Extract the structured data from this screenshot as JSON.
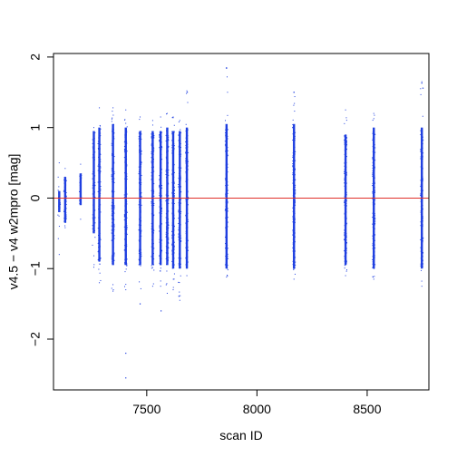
{
  "chart_data": {
    "type": "scatter",
    "title": "",
    "xlabel": "scan ID",
    "ylabel": "v4.5 − v4 w2mpro [mag]",
    "xlim": [
      7077,
      8780
    ],
    "ylim": [
      -2.72,
      2.05
    ],
    "x_ticks": [
      7500,
      8000,
      8500
    ],
    "x_tick_labels": [
      "7500",
      "8000",
      "8500"
    ],
    "y_ticks": [
      -2,
      -1,
      0,
      1,
      2
    ],
    "y_tick_labels": [
      "−2",
      "−1",
      "0",
      "1",
      "2"
    ],
    "reference_line": {
      "y": 0,
      "color": "#e0302a"
    },
    "point_color": "#1f3fe0",
    "grid": false,
    "columns": [
      {
        "x": 7103,
        "y_min": -0.8,
        "y_max": 0.5,
        "dense_min": -0.2,
        "dense_max": 0.1,
        "n": 22
      },
      {
        "x": 7130,
        "y_min": -0.42,
        "y_max": 0.42,
        "dense_min": -0.35,
        "dense_max": 0.3,
        "n": 60
      },
      {
        "x": 7200,
        "y_min": -0.3,
        "y_max": 0.48,
        "dense_min": -0.1,
        "dense_max": 0.35,
        "n": 22
      },
      {
        "x": 7260,
        "y_min": -0.98,
        "y_max": 1.0,
        "dense_min": -0.5,
        "dense_max": 0.95,
        "n": 70
      },
      {
        "x": 7285,
        "y_min": -1.2,
        "y_max": 1.28,
        "dense_min": -0.9,
        "dense_max": 1.0,
        "n": 110
      },
      {
        "x": 7347,
        "y_min": -1.32,
        "y_max": 1.28,
        "dense_min": -0.95,
        "dense_max": 1.05,
        "n": 160
      },
      {
        "x": 7405,
        "y_min": -1.3,
        "y_max": 1.25,
        "dense_min": -0.95,
        "dense_max": 1.0,
        "n": 160
      },
      {
        "x": 7470,
        "y_min": -1.5,
        "y_max": 1.15,
        "dense_min": -0.95,
        "dense_max": 0.95,
        "n": 130
      },
      {
        "x": 7527,
        "y_min": -1.25,
        "y_max": 1.1,
        "dense_min": -0.95,
        "dense_max": 0.95,
        "n": 130
      },
      {
        "x": 7563,
        "y_min": -1.25,
        "y_max": 1.15,
        "dense_min": -0.95,
        "dense_max": 0.95,
        "n": 130
      },
      {
        "x": 7593,
        "y_min": -1.35,
        "y_max": 1.2,
        "dense_min": -0.95,
        "dense_max": 1.0,
        "n": 130
      },
      {
        "x": 7620,
        "y_min": -1.3,
        "y_max": 1.15,
        "dense_min": -1.0,
        "dense_max": 0.95,
        "n": 130
      },
      {
        "x": 7650,
        "y_min": -1.45,
        "y_max": 1.1,
        "dense_min": -1.0,
        "dense_max": 0.95,
        "n": 130
      },
      {
        "x": 7682,
        "y_min": -1.1,
        "y_max": 1.52,
        "dense_min": -1.0,
        "dense_max": 1.0,
        "n": 130
      },
      {
        "x": 7862,
        "y_min": -1.12,
        "y_max": 1.85,
        "dense_min": -1.0,
        "dense_max": 1.05,
        "n": 160
      },
      {
        "x": 8168,
        "y_min": -1.15,
        "y_max": 1.5,
        "dense_min": -1.0,
        "dense_max": 1.05,
        "n": 170
      },
      {
        "x": 8402,
        "y_min": -1.1,
        "y_max": 1.25,
        "dense_min": -0.95,
        "dense_max": 0.9,
        "n": 170
      },
      {
        "x": 8530,
        "y_min": -1.15,
        "y_max": 1.2,
        "dense_min": -1.0,
        "dense_max": 1.0,
        "n": 170
      },
      {
        "x": 8748,
        "y_min": -1.25,
        "y_max": 1.65,
        "dense_min": -1.0,
        "dense_max": 1.0,
        "n": 170
      }
    ],
    "outliers": [
      {
        "x": 7405,
        "y": -2.2
      },
      {
        "x": 7405,
        "y": -2.55
      },
      {
        "x": 7565,
        "y": -1.6
      },
      {
        "x": 7470,
        "y": -1.5
      },
      {
        "x": 7684,
        "y": 1.5
      },
      {
        "x": 7862,
        "y": 1.84
      },
      {
        "x": 8748,
        "y": 1.63
      },
      {
        "x": 8168,
        "y": 1.5
      }
    ]
  }
}
